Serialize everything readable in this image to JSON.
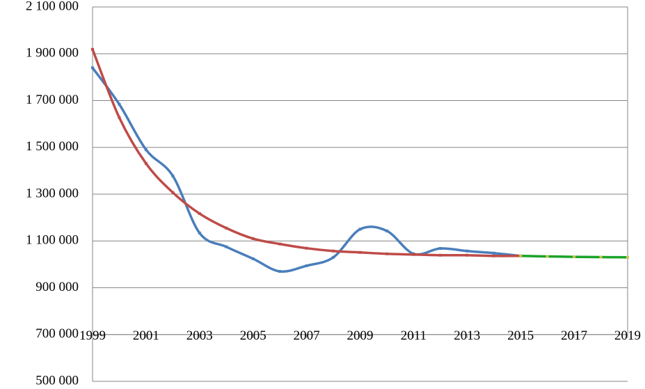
{
  "chart_data": {
    "type": "line",
    "x": [
      1999,
      2000,
      2001,
      2002,
      2003,
      2004,
      2005,
      2006,
      2007,
      2008,
      2009,
      2010,
      2011,
      2012,
      2013,
      2014,
      2015,
      2016,
      2017,
      2018,
      2019
    ],
    "series": [
      {
        "color": "#4a7ebb",
        "values": [
          1840000,
          1684000,
          1490000,
          1378000,
          1134000,
          1075000,
          1024000,
          970000,
          994000,
          1030000,
          1150000,
          1143000,
          1045000,
          1068000,
          1057000,
          1048000,
          1036000,
          null,
          null,
          null,
          null
        ]
      },
      {
        "color": "#be4b48",
        "values": [
          1919000,
          1627000,
          1431000,
          1307000,
          1217000,
          1155000,
          1110000,
          1087000,
          1069000,
          1057000,
          1051000,
          1045000,
          1042000,
          1039000,
          1039000,
          1036000,
          1036000,
          null,
          null,
          null,
          null
        ]
      },
      {
        "color": "#1aa32a",
        "values": [
          null,
          null,
          null,
          null,
          null,
          null,
          null,
          null,
          null,
          null,
          null,
          null,
          null,
          null,
          null,
          null,
          1036000,
          1034000,
          1032000,
          1031000,
          1030000
        ]
      }
    ],
    "xlim": [
      1999,
      2019
    ],
    "xticks": [
      1999,
      2001,
      2003,
      2005,
      2007,
      2009,
      2011,
      2013,
      2015,
      2017,
      2019
    ],
    "ylim": [
      500000,
      2100000
    ],
    "yticks": [
      {
        "value": 2100000,
        "label": "2 100 000"
      },
      {
        "value": 1900000,
        "label": "1 900 000"
      },
      {
        "value": 1700000,
        "label": "1 700 000"
      },
      {
        "value": 1500000,
        "label": "1 500 000"
      },
      {
        "value": 1300000,
        "label": "1 300 000"
      },
      {
        "value": 1100000,
        "label": "1 100 000"
      },
      {
        "value": 900000,
        "label": "900 000"
      },
      {
        "value": 700000,
        "label": "700 000"
      },
      {
        "value": 500000,
        "label": "500 000"
      }
    ],
    "x_axis_crosses": 700000,
    "grid": true,
    "smooth": true
  }
}
